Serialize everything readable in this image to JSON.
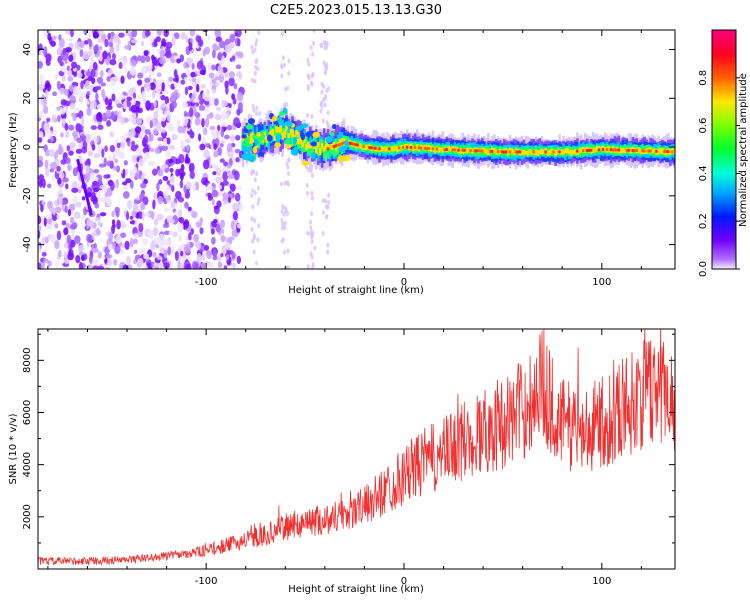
{
  "title": "C2E5.2023.015.13.13.G30",
  "chart_data": [
    {
      "type": "heatmap",
      "xlabel": "Height of straight line (km)",
      "ylabel": "Frequency (Hz)",
      "xlim": [
        -185,
        137
      ],
      "ylim": [
        -50,
        48
      ],
      "x_ticks": [
        -100,
        0,
        100
      ],
      "y_ticks": [
        -40,
        -20,
        0,
        20,
        40
      ],
      "colorbar": {
        "label": "Normalized spectral amplitude",
        "range": [
          0.0,
          1.0
        ],
        "ticks": [
          "0.0",
          "0.2",
          "0.4",
          "0.6",
          "0.8"
        ],
        "tick_values": [
          0.0,
          0.2,
          0.4,
          0.6,
          0.8
        ],
        "colormap": "gist_rainbow_r"
      },
      "noise_region_x": [
        -185,
        -82
      ],
      "signal_trace": [
        [
          -82,
          2
        ],
        [
          -70,
          4
        ],
        [
          -60,
          7
        ],
        [
          -50,
          1
        ],
        [
          -40,
          -1
        ],
        [
          -30,
          2
        ],
        [
          -20,
          0
        ],
        [
          -10,
          -1
        ],
        [
          0,
          0
        ],
        [
          20,
          -1
        ],
        [
          50,
          -2
        ],
        [
          80,
          -2
        ],
        [
          100,
          -1
        ],
        [
          137,
          -2
        ]
      ]
    },
    {
      "type": "line",
      "xlabel": "Height of straight line (km)",
      "ylabel": "SNR (10 * v/v)",
      "xlim": [
        -185,
        137
      ],
      "ylim": [
        0,
        9200
      ],
      "x_ticks": [
        -100,
        0,
        100
      ],
      "y_ticks": [
        2000,
        4000,
        6000,
        8000
      ],
      "series": [
        {
          "color": "#f03030",
          "x": [
            -185,
            -160,
            -140,
            -120,
            -100,
            -90,
            -80,
            -70,
            -60,
            -50,
            -40,
            -30,
            -20,
            -10,
            0,
            10,
            20,
            30,
            40,
            50,
            60,
            65,
            70,
            75,
            80,
            90,
            100,
            110,
            120,
            130,
            137
          ],
          "values": [
            300,
            300,
            350,
            500,
            700,
            900,
            1100,
            1300,
            1600,
            1800,
            1900,
            2100,
            2400,
            3000,
            3600,
            4100,
            4400,
            4900,
            5300,
            5600,
            6100,
            6600,
            7200,
            6200,
            5600,
            5300,
            5600,
            6200,
            6600,
            7100,
            6500
          ]
        }
      ]
    }
  ]
}
